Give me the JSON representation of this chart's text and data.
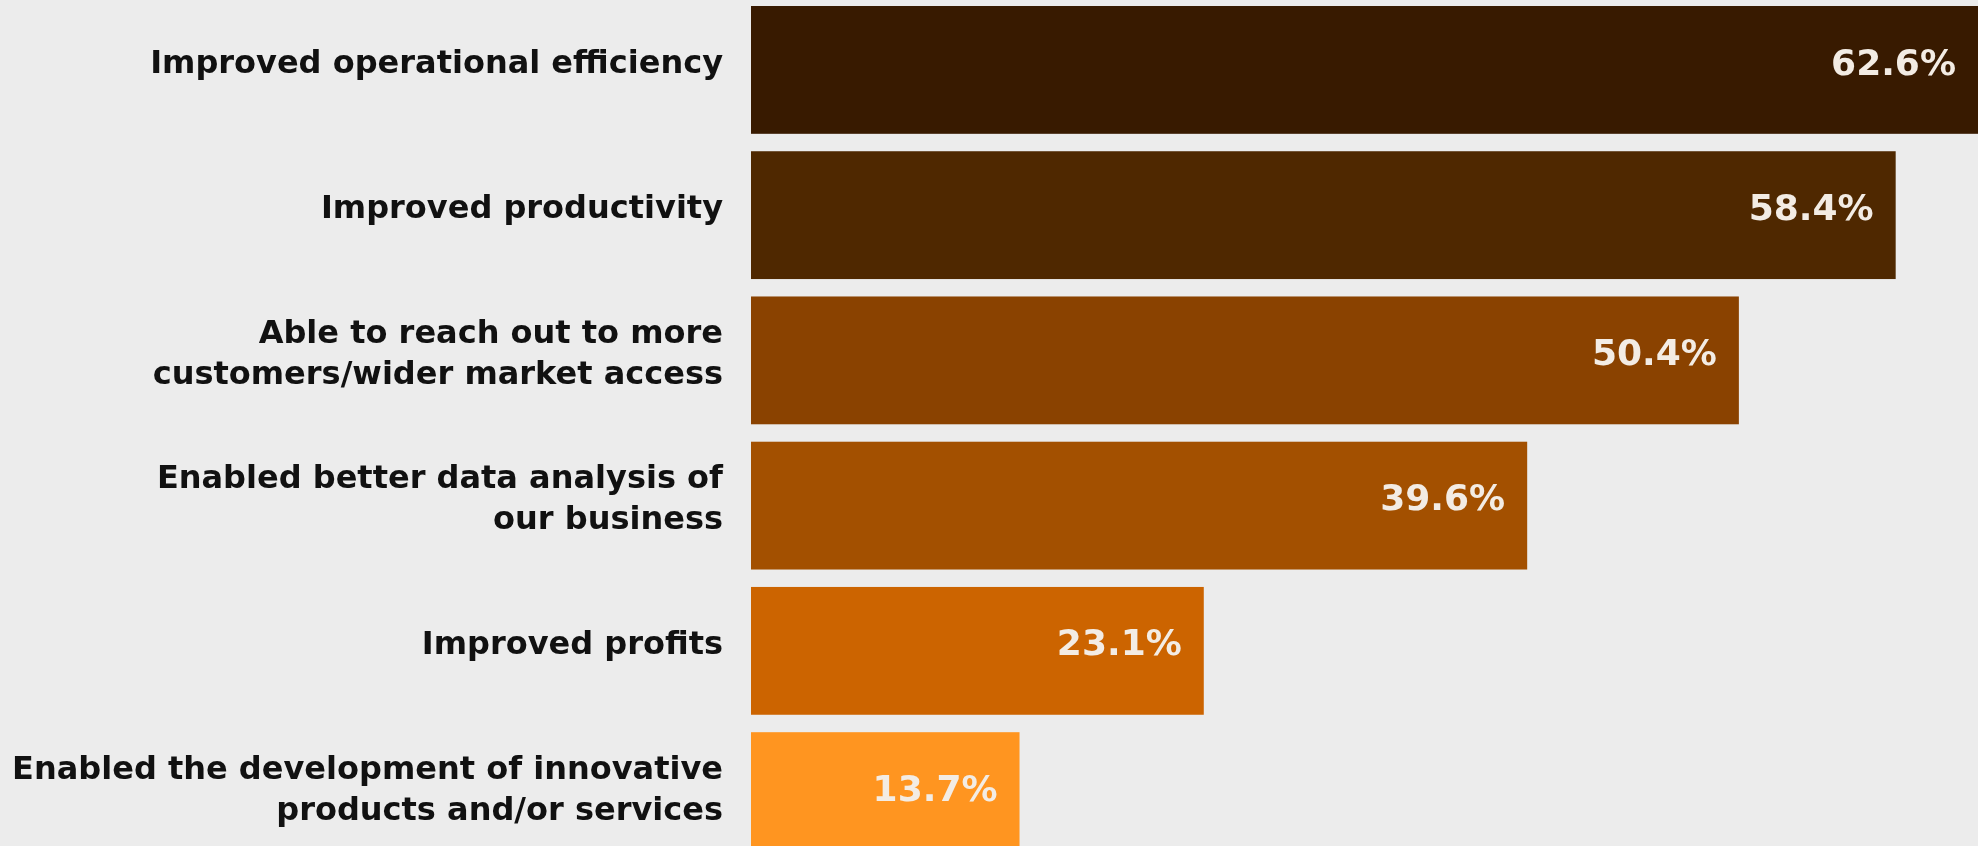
{
  "chart_data": {
    "type": "bar",
    "orientation": "horizontal",
    "categories": [
      "Improved operational efficiency",
      "Improved productivity",
      "Able to reach out to more\ncustomers/wider market access",
      "Enabled better data analysis of\nour business",
      "Improved profits",
      "Enabled the development of innovative\nproducts and/or services"
    ],
    "values": [
      62.6,
      58.4,
      50.4,
      39.6,
      23.1,
      13.7
    ],
    "colors": [
      "#381a00",
      "#4f2800",
      "#8a4200",
      "#a35000",
      "#cc6400",
      "#ff9520"
    ],
    "value_labels": [
      "62.6%",
      "58.4%",
      "50.4%",
      "39.6%",
      "23.1%",
      "13.7%"
    ]
  }
}
